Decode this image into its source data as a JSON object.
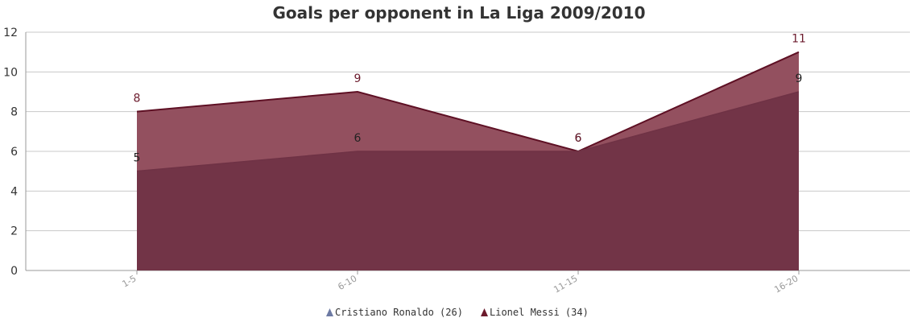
{
  "chart_data": {
    "type": "area",
    "title": "Goals per opponent in La Liga 2009/2010",
    "xlabel": "",
    "ylabel": "",
    "categories": [
      "1-5",
      "6-10",
      "11-15",
      "16-20"
    ],
    "ylim": [
      0,
      12
    ],
    "yticks": [
      0,
      2,
      4,
      6,
      8,
      10,
      12
    ],
    "grid": true,
    "legend_position": "bottom",
    "series": [
      {
        "name": "Cristiano Ronaldo (26)",
        "values": [
          5,
          6,
          6,
          9
        ],
        "fill": "#6f3245",
        "stroke": "#6f3245",
        "label_color": "#222222",
        "legend_color": "#6d7aa3"
      },
      {
        "name": "Lionel Messi (34)",
        "values": [
          8,
          9,
          6,
          11
        ],
        "fill": "#93505f",
        "stroke": "#5e1024",
        "label_color": "#6b1a2c",
        "legend_color": "#6b1a2c"
      }
    ]
  }
}
